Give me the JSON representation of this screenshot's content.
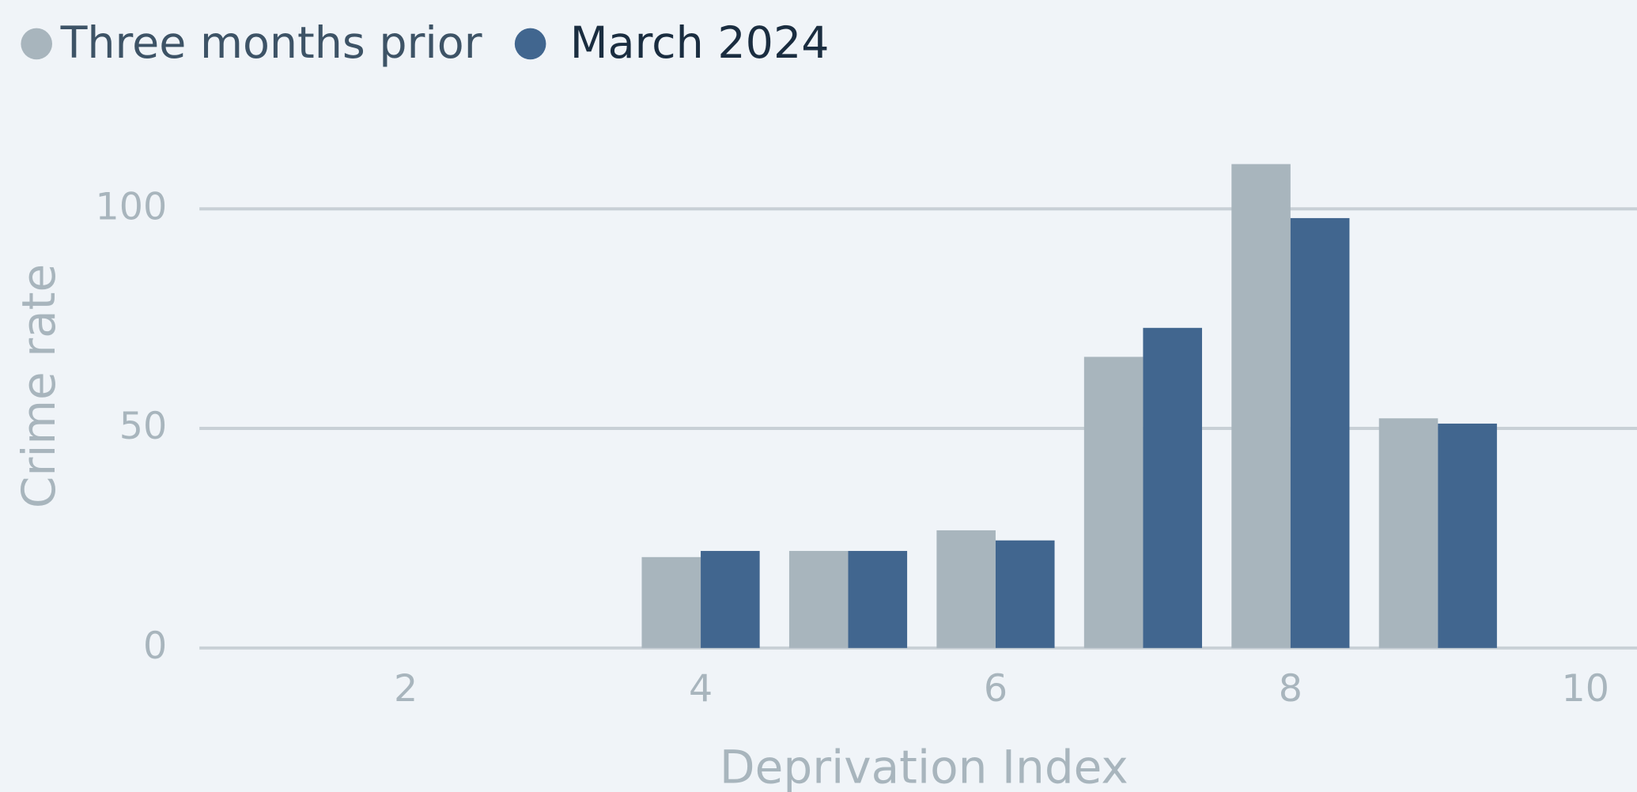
{
  "chart_data": {
    "type": "bar",
    "x_label": "Deprivation Index",
    "y_label": "Crime rate",
    "x": [
      4,
      5,
      6,
      7,
      8,
      9
    ],
    "series": [
      {
        "name": "Three months prior",
        "color": "#a8b5bd",
        "values": [
          20.7,
          22.1,
          26.8,
          66.3,
          110.2,
          52.3
        ]
      },
      {
        "name": "March 2024",
        "color": "#41668f",
        "values": [
          22.1,
          22.1,
          24.5,
          72.9,
          97.9,
          51.1
        ]
      }
    ],
    "xlim": [
      0.6,
      10.35
    ],
    "xticks": [
      2,
      4,
      6,
      8,
      10
    ],
    "ylim": [
      0,
      120
    ],
    "yticks": [
      0,
      50,
      100
    ],
    "grid": true
  }
}
